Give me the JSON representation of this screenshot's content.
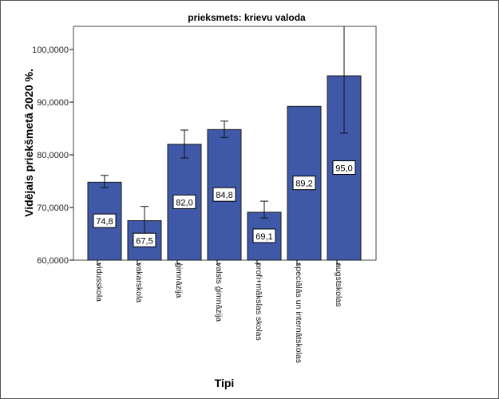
{
  "chart_data": {
    "type": "bar",
    "title": "prieksmets: krievu valoda",
    "xlabel": "Tipi",
    "ylabel": "Vidējais priekšmetā 2020 %.",
    "ylim": [
      60,
      104.4
    ],
    "yticks": [
      60,
      70,
      80,
      90,
      100
    ],
    "ytick_labels": [
      "60,0000",
      "70,0000",
      "80,0000",
      "90,0000",
      "100,0000"
    ],
    "grid": false,
    "categories": [
      "vidusskola",
      "vakarskola",
      "ģimnāzija",
      "valsts ģimnāzija",
      "profi+mākslas skolas",
      "speciālās un internātskolas",
      "augstskolas"
    ],
    "values": [
      74.8,
      67.5,
      82.0,
      84.8,
      69.1,
      89.2,
      95.0
    ],
    "value_labels": [
      "74,8",
      "67,5",
      "82,0",
      "84,8",
      "69,1",
      "89,2",
      "95,0"
    ],
    "error_low": [
      73.8,
      64.5,
      79.4,
      83.3,
      68.0,
      null,
      84.1
    ],
    "error_high": [
      76.1,
      70.2,
      84.7,
      86.4,
      71.2,
      null,
      104.4
    ],
    "bar_color": "#3f58a8"
  }
}
